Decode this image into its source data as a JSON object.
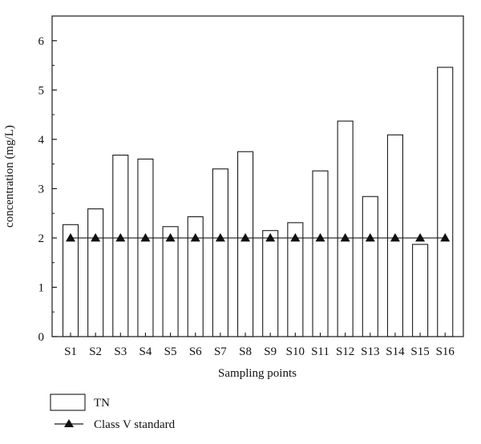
{
  "chart_data": {
    "type": "bar",
    "xlabel": "Sampling points",
    "ylabel": "concentration (mg/L)",
    "ylim": [
      0,
      6.5
    ],
    "yticks": [
      0,
      1,
      2,
      3,
      4,
      5,
      6
    ],
    "categories": [
      "S1",
      "S2",
      "S3",
      "S4",
      "S5",
      "S6",
      "S7",
      "S8",
      "S9",
      "S10",
      "S11",
      "S12",
      "S13",
      "S14",
      "S15",
      "S16"
    ],
    "series": [
      {
        "name": "TN",
        "kind": "bar",
        "values": [
          2.27,
          2.59,
          3.68,
          3.6,
          2.23,
          2.43,
          3.4,
          3.75,
          2.15,
          2.31,
          3.36,
          4.37,
          2.84,
          4.09,
          1.87,
          5.46
        ]
      },
      {
        "name": "Class V standard",
        "kind": "line-triangle-markers",
        "values": [
          2,
          2,
          2,
          2,
          2,
          2,
          2,
          2,
          2,
          2,
          2,
          2,
          2,
          2,
          2,
          2
        ]
      }
    ],
    "grid": false,
    "legend_placement": "bottom-left",
    "colors": {
      "bar_fill": "#ffffff",
      "stroke": "#1a1a1a"
    }
  }
}
